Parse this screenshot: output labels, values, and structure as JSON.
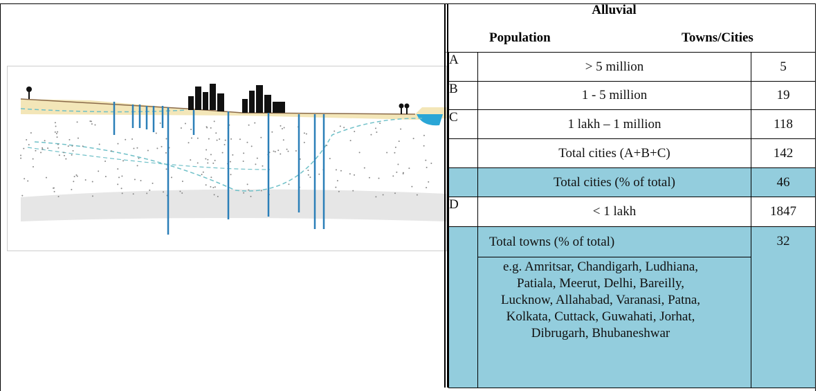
{
  "header": {
    "title": "Alluvial",
    "columns": [
      "Population",
      "Towns/Cities"
    ]
  },
  "table": {
    "rows": [
      {
        "label": "A",
        "population": "> 5 million",
        "count": 5
      },
      {
        "label": "B",
        "population": "1 - 5 million",
        "count": 19
      },
      {
        "label": "C",
        "population": "1 lakh – 1 million",
        "count": 118
      },
      {
        "population": "Total cities (A+B+C)",
        "count": 142
      },
      {
        "population": "Total cities (% of total)",
        "count": 46,
        "fill": "#93cddd"
      },
      {
        "label": "D",
        "population": "< 1 lakh",
        "count": 1847
      },
      {
        "population": "Total towns (% of total)",
        "count": 32,
        "fill": "#93cddd",
        "note": "e.g. Amritsar, Chandigarh, Ludhiana, Patiala, Meerut, Delhi, Bareilly, Lucknow, Allahabad, Varanasi, Patna, Kolkata, Cuttack, Guwahati, Jorhat, Dibrugarh, Bhubaneshwar"
      }
    ]
  }
}
